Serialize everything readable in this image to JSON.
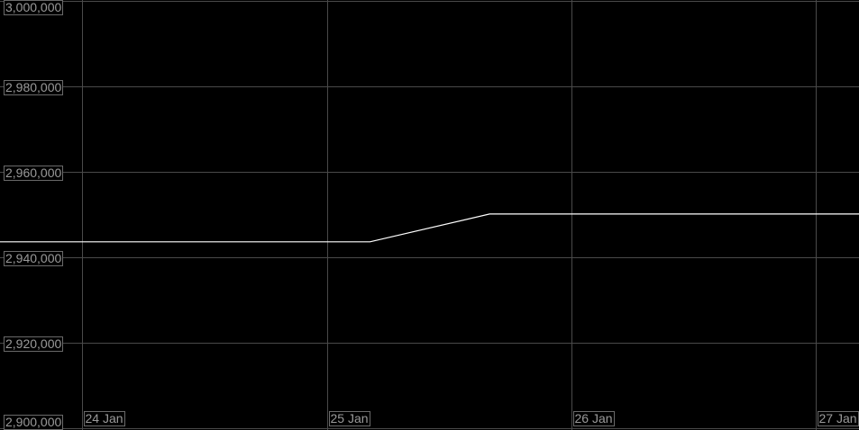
{
  "chart_data": {
    "type": "line",
    "title": "",
    "xlabel": "",
    "ylabel": "",
    "ylim": [
      2900000,
      3000000
    ],
    "xlim": [
      "2024-01-23T15:54",
      "2024-01-27T04:17"
    ],
    "grid": true,
    "y_ticks": [
      3000000,
      2980000,
      2960000,
      2940000,
      2920000,
      2900000
    ],
    "y_tick_labels": [
      "3,000,000",
      "2,980,000",
      "2,960,000",
      "2,940,000",
      "2,920,000",
      "2,900,000"
    ],
    "x_ticks": [
      "2024-01-24T00:00",
      "2024-01-25T00:00",
      "2024-01-26T00:00",
      "2024-01-27T00:00"
    ],
    "x_tick_labels": [
      "24 Jan",
      "25 Jan",
      "26 Jan",
      "27 Jan"
    ],
    "series": [
      {
        "x": [
          "2024-01-23T15:54",
          "2024-01-25T04:15",
          "2024-01-25T16:00",
          "2024-01-27T04:17"
        ],
        "y": [
          2943650,
          2943650,
          2950150,
          2950150
        ]
      }
    ],
    "colors": {
      "background": "#000000",
      "line": "#ffffff",
      "grid": "#4a4a4a",
      "label_text": "#9a9a9a"
    }
  }
}
